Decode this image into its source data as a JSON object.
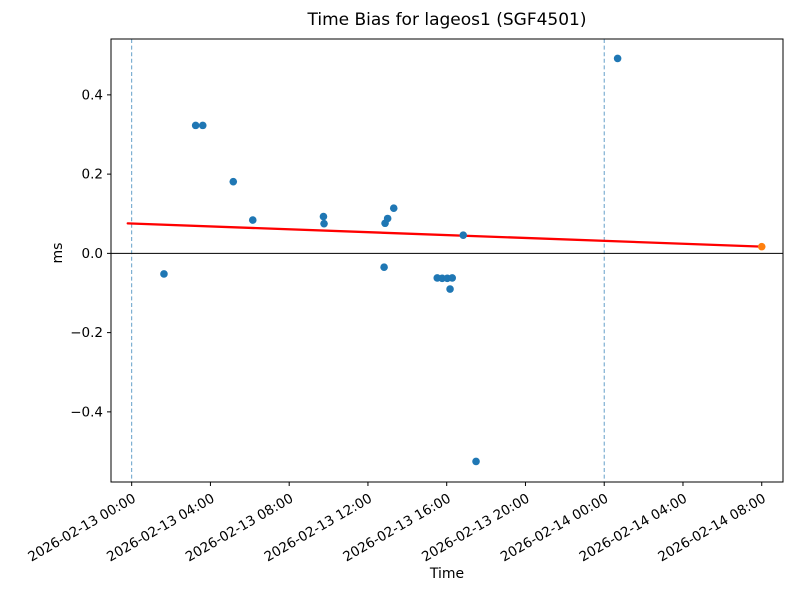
{
  "chart_data": {
    "type": "scatter",
    "title": "Time Bias for lageos1 (SGF4501)",
    "xlabel": "Time",
    "ylabel": "ms",
    "grid": false,
    "xlim_hours": [
      -1.05,
      33.08
    ],
    "ylim": [
      -0.577,
      0.541
    ],
    "x_tick_hours": [
      0,
      4,
      8,
      12,
      16,
      20,
      24,
      28,
      32
    ],
    "x_tick_labels": [
      "2026-02-13 00:00",
      "2026-02-13 04:00",
      "2026-02-13 08:00",
      "2026-02-13 12:00",
      "2026-02-13 16:00",
      "2026-02-13 20:00",
      "2026-02-14 00:00",
      "2026-02-14 04:00",
      "2026-02-14 08:00"
    ],
    "y_ticks": [
      -0.4,
      -0.2,
      0.0,
      0.2,
      0.4
    ],
    "series": [
      {
        "name": "time-bias-point",
        "color": "#1f77b4",
        "points": [
          {
            "time": "2026-02-13 01:38",
            "t": 1.64,
            "ms": -0.052
          },
          {
            "time": "2026-02-13 03:15",
            "t": 3.25,
            "ms": 0.323
          },
          {
            "time": "2026-02-13 03:37",
            "t": 3.61,
            "ms": 0.323
          },
          {
            "time": "2026-02-13 05:10",
            "t": 5.16,
            "ms": 0.181
          },
          {
            "time": "2026-02-13 06:09",
            "t": 6.15,
            "ms": 0.084
          },
          {
            "time": "2026-02-13 09:44",
            "t": 9.74,
            "ms": 0.093
          },
          {
            "time": "2026-02-13 09:46",
            "t": 9.77,
            "ms": 0.075
          },
          {
            "time": "2026-02-13 12:49",
            "t": 12.82,
            "ms": -0.035
          },
          {
            "time": "2026-02-13 12:52",
            "t": 12.87,
            "ms": 0.076
          },
          {
            "time": "2026-02-13 13:00",
            "t": 13.0,
            "ms": 0.088
          },
          {
            "time": "2026-02-13 13:19",
            "t": 13.31,
            "ms": 0.114
          },
          {
            "time": "2026-02-13 15:31",
            "t": 15.52,
            "ms": -0.062
          },
          {
            "time": "2026-02-13 15:46",
            "t": 15.77,
            "ms": -0.063
          },
          {
            "time": "2026-02-13 16:02",
            "t": 16.03,
            "ms": -0.063
          },
          {
            "time": "2026-02-13 16:10",
            "t": 16.17,
            "ms": -0.09
          },
          {
            "time": "2026-02-13 16:17",
            "t": 16.28,
            "ms": -0.062
          },
          {
            "time": "2026-02-13 16:50",
            "t": 16.84,
            "ms": 0.046
          },
          {
            "time": "2026-02-13 17:29",
            "t": 17.49,
            "ms": -0.525
          },
          {
            "time": "2026-02-14 00:41",
            "t": 24.68,
            "ms": 0.492
          }
        ]
      },
      {
        "name": "latest-point",
        "color": "#ff7f0e",
        "points": [
          {
            "time": "2026-02-14 08:00",
            "t": 32.0,
            "ms": 0.017
          }
        ]
      }
    ],
    "trend_line": {
      "color": "#ff0000",
      "start": {
        "t": -0.2,
        "ms": 0.0757
      },
      "end": {
        "t": 32.0,
        "ms": 0.017
      }
    },
    "vlines": {
      "color": "#64a0c8",
      "style": "dashed",
      "t_hours": [
        0,
        24
      ],
      "labels": [
        "2026-02-13 00:00",
        "2026-02-14 00:00"
      ]
    },
    "zero_line": {
      "color": "#000000",
      "ms": 0.0
    },
    "colors": {
      "points": "#1f77b4",
      "latest": "#ff7f0e",
      "trend": "#ff0000",
      "day_boundary": "#64a0c8",
      "axis": "#000000",
      "background": "#ffffff"
    }
  }
}
